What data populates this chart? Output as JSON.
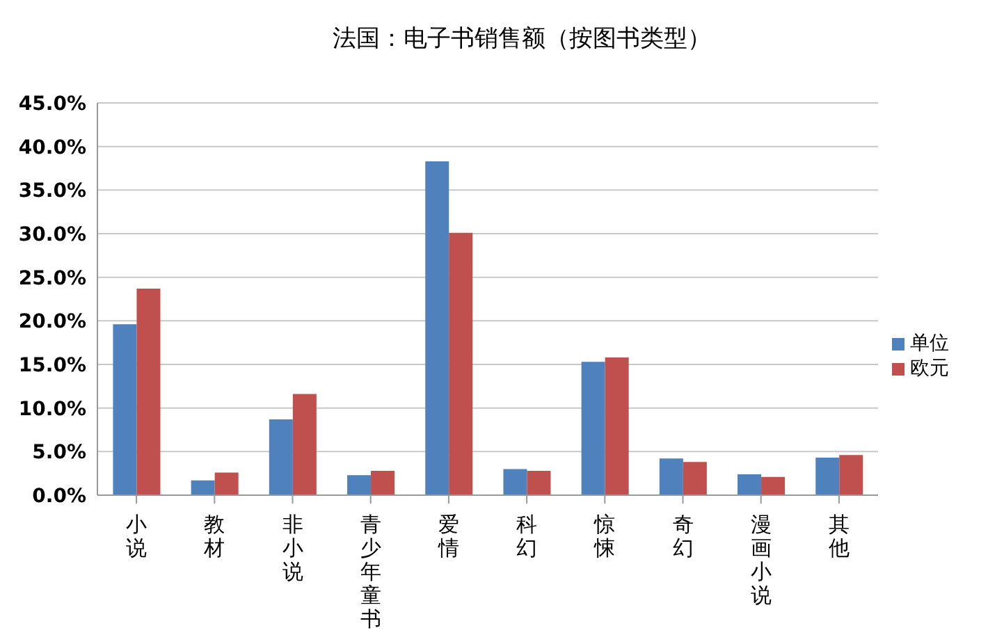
{
  "chart_data": {
    "type": "bar",
    "title": "法国：电子书销售额（按图书类型）",
    "categories": [
      "小说",
      "教材",
      "非小说",
      "青少年童书",
      "爱情",
      "科幻",
      "惊悚",
      "奇幻",
      "漫画小说",
      "其他"
    ],
    "series": [
      {
        "name": "单位",
        "color": "#4f81bd",
        "values": [
          19.6,
          1.7,
          8.7,
          2.3,
          38.3,
          3.0,
          15.3,
          4.2,
          2.4,
          4.3
        ]
      },
      {
        "name": "欧元",
        "color": "#c0504d",
        "values": [
          23.7,
          2.6,
          11.6,
          2.8,
          30.1,
          2.8,
          15.8,
          3.8,
          2.1,
          4.6
        ]
      }
    ],
    "ylim": [
      0,
      45
    ],
    "yticks": [
      {
        "value": 0,
        "label": "0.0%"
      },
      {
        "value": 5,
        "label": "5.0%"
      },
      {
        "value": 10,
        "label": "10.0%"
      },
      {
        "value": 15,
        "label": "15.0%"
      },
      {
        "value": 20,
        "label": "20.0%"
      },
      {
        "value": 25,
        "label": "25.0%"
      },
      {
        "value": 30,
        "label": "30.0%"
      },
      {
        "value": 35,
        "label": "35.0%"
      },
      {
        "value": 40,
        "label": "40.0%"
      },
      {
        "value": 45,
        "label": "45.0%"
      }
    ],
    "grid": "y",
    "legend": "right"
  }
}
